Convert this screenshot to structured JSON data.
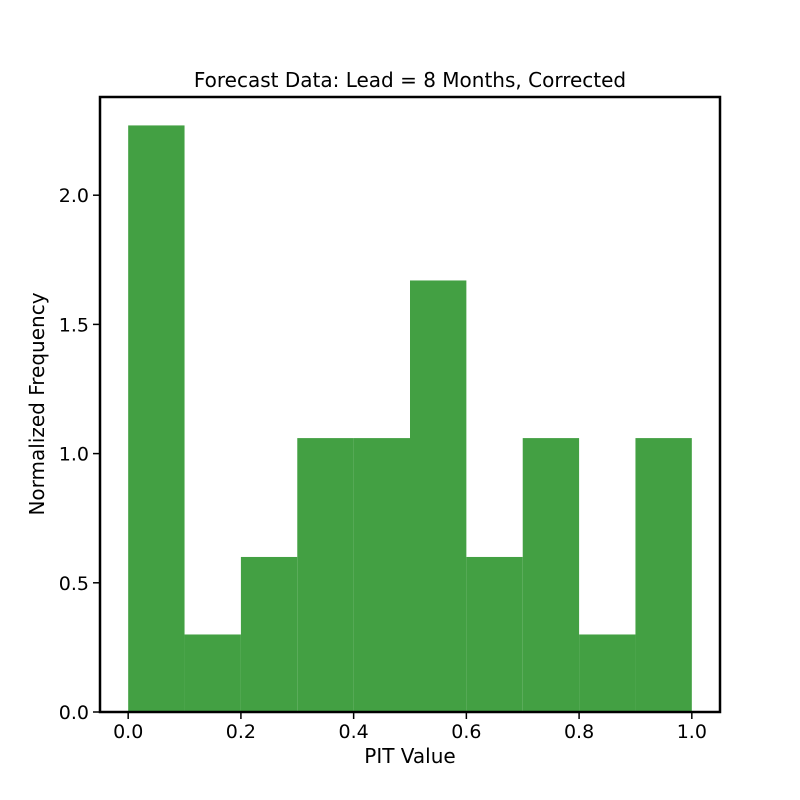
{
  "chart_data": {
    "type": "bar",
    "subtype": "histogram",
    "title": "Forecast Data: Lead = 8 Months, Corrected",
    "xlabel": "PIT Value",
    "ylabel": "Normalized Frequency",
    "bins": [
      {
        "x0": 0.0,
        "x1": 0.1,
        "value": 2.27
      },
      {
        "x0": 0.1,
        "x1": 0.2,
        "value": 0.3
      },
      {
        "x0": 0.2,
        "x1": 0.3,
        "value": 0.6
      },
      {
        "x0": 0.3,
        "x1": 0.4,
        "value": 1.06
      },
      {
        "x0": 0.4,
        "x1": 0.5,
        "value": 1.06
      },
      {
        "x0": 0.5,
        "x1": 0.6,
        "value": 1.67
      },
      {
        "x0": 0.6,
        "x1": 0.7,
        "value": 0.6
      },
      {
        "x0": 0.7,
        "x1": 0.8,
        "value": 1.06
      },
      {
        "x0": 0.8,
        "x1": 0.9,
        "value": 0.3
      },
      {
        "x0": 0.9,
        "x1": 1.0,
        "value": 1.06
      }
    ],
    "xlim": [
      -0.05,
      1.05
    ],
    "ylim": [
      0,
      2.38
    ],
    "xticks": [
      "0.0",
      "0.2",
      "0.4",
      "0.6",
      "0.8",
      "1.0"
    ],
    "yticks": [
      "0.0",
      "0.5",
      "1.0",
      "1.5",
      "2.0"
    ],
    "bar_color": "#43A043",
    "grid": false,
    "legend": "none"
  }
}
